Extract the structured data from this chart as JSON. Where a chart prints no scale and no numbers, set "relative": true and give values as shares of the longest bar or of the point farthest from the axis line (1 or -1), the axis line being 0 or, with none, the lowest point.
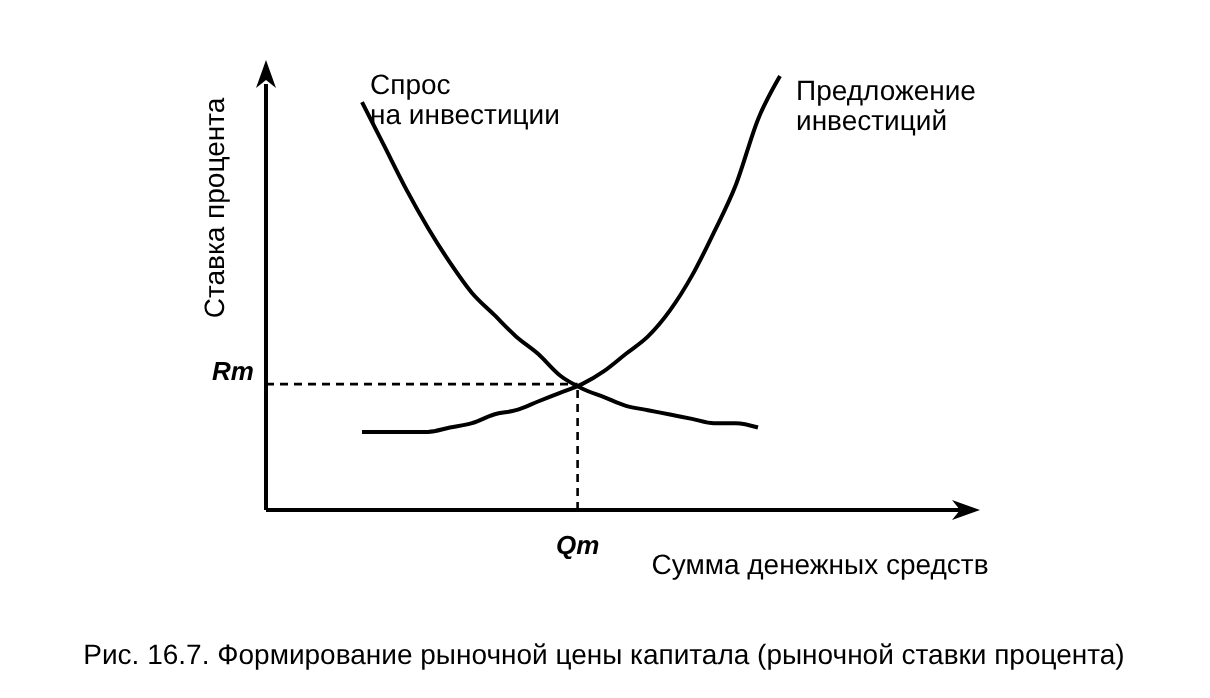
{
  "chart_data": {
    "type": "line",
    "relative": true,
    "title": "Рис. 16.7. Формирование рыночной цены капитала (рыночной ставки процента)",
    "xlabel": "Сумма денежных средств",
    "ylabel": "Ставка процента",
    "categories": [
      null,
      null,
      null,
      null,
      null,
      null,
      null,
      null,
      null,
      null,
      null,
      null,
      null,
      null,
      null,
      null,
      null,
      null,
      null,
      null,
      null
    ],
    "series": [
      {
        "name": "Спрос на инвестиции",
        "color": "#000000",
        "values": [
          null,
          0.94,
          0.84,
          0.74,
          0.65,
          0.57,
          0.5,
          0.45,
          0.4,
          0.36,
          0.31,
          0.28,
          0.26,
          0.24,
          0.23,
          0.22,
          0.21,
          0.2,
          0.2,
          0.19,
          null
        ]
      },
      {
        "name": "Предложение инвестиций",
        "color": "#000000",
        "values": [
          null,
          0.18,
          0.18,
          0.18,
          0.18,
          0.19,
          0.2,
          0.22,
          0.23,
          0.25,
          0.27,
          0.29,
          0.32,
          0.36,
          0.4,
          0.46,
          0.54,
          0.64,
          0.75,
          0.9,
          1
        ]
      }
    ],
    "ref_lines": [
      {
        "axis": "y",
        "value": 0.29,
        "label": "Rm",
        "line_style": "dashed"
      }
    ],
    "annotations": [
      "Qm"
    ],
    "marker": "none",
    "line_style": "solid"
  }
}
